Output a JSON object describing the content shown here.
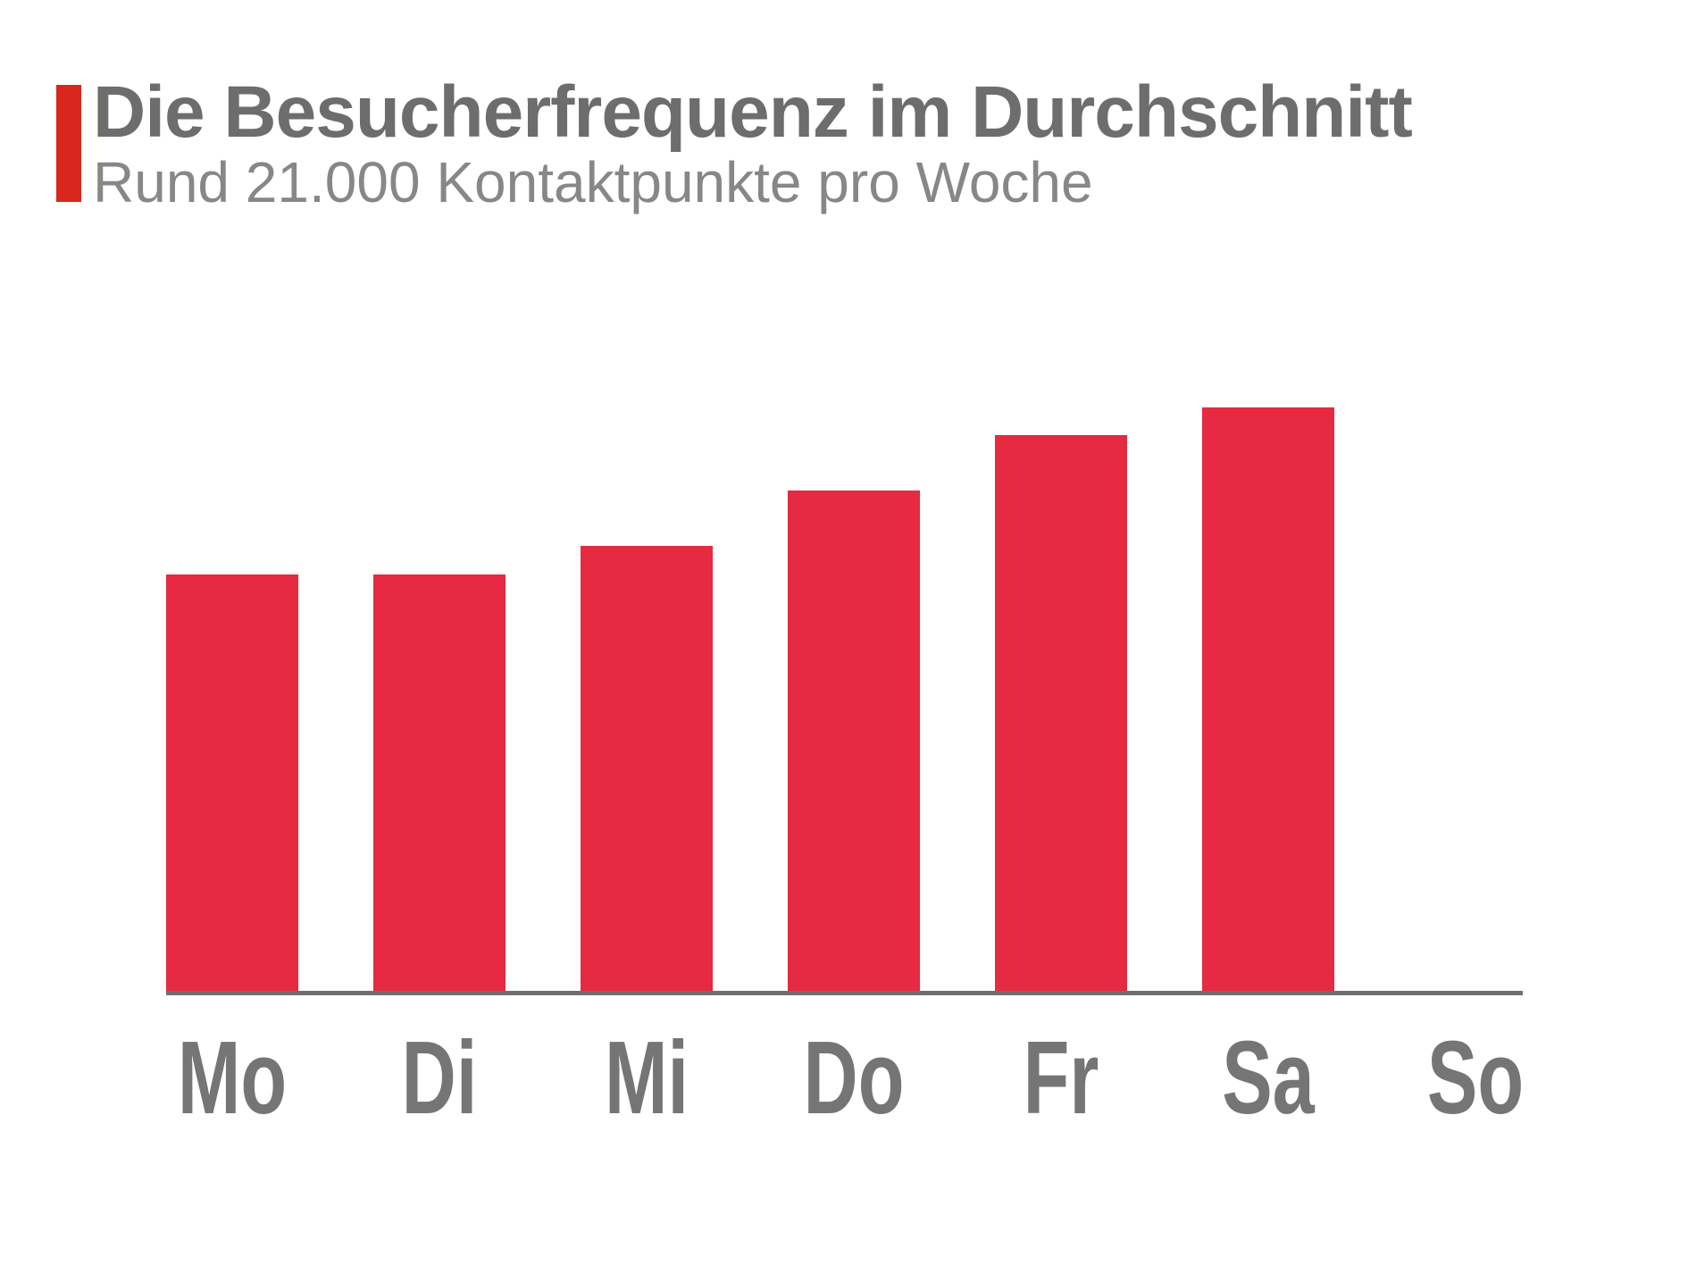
{
  "header": {
    "title": "Die Besucherfrequenz im Durchschnitt",
    "subtitle": "Rund 21.000 Kontaktpunkte pro Woche"
  },
  "chart_data": {
    "type": "bar",
    "title": "Die Besucherfrequenz im Durchschnitt",
    "subtitle": "Rund 21.000 Kontaktpunkte pro Woche",
    "categories": [
      "Mo",
      "Di",
      "Mi",
      "Do",
      "Fr",
      "Sa",
      "So"
    ],
    "values": [
      3000,
      3000,
      3200,
      3600,
      4000,
      4200,
      0
    ],
    "values_note": "estimated from bar heights; weekly sum matches the stated ~21.000 Kontaktpunkte; no bar drawn for So",
    "xlabel": "",
    "ylabel": "",
    "ylim": [
      0,
      4400
    ],
    "grid": false,
    "legend": false,
    "value_labels_shown": false,
    "tick_labels_shown": false,
    "bar_color": "#e52a42",
    "accent_color": "#d8261c",
    "axis_color": "#6f6f6f",
    "title_color": "#6d6d6d",
    "subtitle_color": "#878787",
    "label_color": "#757575"
  }
}
